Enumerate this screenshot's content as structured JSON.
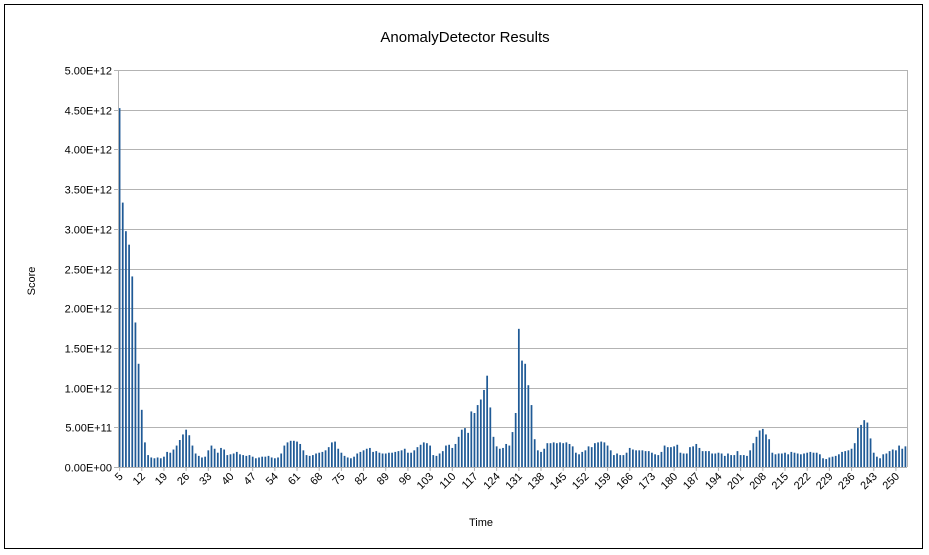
{
  "chart_data": {
    "type": "bar",
    "title": "AnomalyDetector Results",
    "xlabel": "Time",
    "ylabel": "Score",
    "ylim": [
      0,
      5000000000000
    ],
    "yticks": [
      "0.00E+00",
      "5.00E+11",
      "1.00E+12",
      "1.50E+12",
      "2.00E+12",
      "2.50E+12",
      "3.00E+12",
      "3.50E+12",
      "4.00E+12",
      "4.50E+12",
      "5.00E+12"
    ],
    "x_start": 5,
    "x_end": 256,
    "xtick_labels": [
      5,
      12,
      19,
      26,
      33,
      40,
      47,
      54,
      61,
      68,
      75,
      82,
      89,
      96,
      103,
      110,
      117,
      124,
      131,
      138,
      145,
      152,
      159,
      166,
      173,
      180,
      187,
      194,
      201,
      208,
      215,
      222,
      229,
      236,
      243,
      250
    ],
    "grid": true,
    "legend": "none",
    "bar_color": "#1f5a96",
    "series": [
      {
        "values": [
          4520000000000.0,
          3330000000000.0,
          2970000000000.0,
          2800000000000.0,
          2400000000000.0,
          1820000000000.0,
          1300000000000.0,
          720000000000.0,
          310000000000.0,
          150000000000.0,
          120000000000.0,
          110000000000.0,
          120000000000.0,
          110000000000.0,
          130000000000.0,
          190000000000.0,
          180000000000.0,
          220000000000.0,
          270000000000.0,
          340000000000.0,
          410000000000.0,
          470000000000.0,
          400000000000.0,
          270000000000.0,
          170000000000.0,
          140000000000.0,
          120000000000.0,
          130000000000.0,
          210000000000.0,
          270000000000.0,
          230000000000.0,
          180000000000.0,
          240000000000.0,
          220000000000.0,
          150000000000.0,
          160000000000.0,
          170000000000.0,
          190000000000.0,
          160000000000.0,
          150000000000.0,
          140000000000.0,
          150000000000.0,
          130000000000.0,
          110000000000.0,
          120000000000.0,
          130000000000.0,
          130000000000.0,
          140000000000.0,
          120000000000.0,
          110000000000.0,
          120000000000.0,
          170000000000.0,
          270000000000.0,
          310000000000.0,
          330000000000.0,
          330000000000.0,
          320000000000.0,
          290000000000.0,
          210000000000.0,
          150000000000.0,
          140000000000.0,
          150000000000.0,
          170000000000.0,
          180000000000.0,
          190000000000.0,
          210000000000.0,
          250000000000.0,
          310000000000.0,
          320000000000.0,
          230000000000.0,
          180000000000.0,
          140000000000.0,
          120000000000.0,
          110000000000.0,
          130000000000.0,
          170000000000.0,
          190000000000.0,
          210000000000.0,
          230000000000.0,
          240000000000.0,
          190000000000.0,
          200000000000.0,
          180000000000.0,
          170000000000.0,
          170000000000.0,
          180000000000.0,
          180000000000.0,
          190000000000.0,
          200000000000.0,
          210000000000.0,
          230000000000.0,
          180000000000.0,
          180000000000.0,
          210000000000.0,
          250000000000.0,
          280000000000.0,
          310000000000.0,
          300000000000.0,
          270000000000.0,
          150000000000.0,
          140000000000.0,
          170000000000.0,
          200000000000.0,
          270000000000.0,
          280000000000.0,
          240000000000.0,
          290000000000.0,
          380000000000.0,
          470000000000.0,
          490000000000.0,
          430000000000.0,
          700000000000.0,
          680000000000.0,
          780000000000.0,
          850000000000.0,
          970000000000.0,
          1150000000000.0,
          750000000000.0,
          380000000000.0,
          260000000000.0,
          230000000000.0,
          240000000000.0,
          290000000000.0,
          270000000000.0,
          440000000000.0,
          680000000000.0,
          1740000000000.0,
          1340000000000.0,
          1300000000000.0,
          1030000000000.0,
          780000000000.0,
          350000000000.0,
          210000000000.0,
          190000000000.0,
          230000000000.0,
          300000000000.0,
          300000000000.0,
          310000000000.0,
          300000000000.0,
          310000000000.0,
          300000000000.0,
          310000000000.0,
          290000000000.0,
          260000000000.0,
          180000000000.0,
          160000000000.0,
          190000000000.0,
          210000000000.0,
          260000000000.0,
          250000000000.0,
          300000000000.0,
          310000000000.0,
          320000000000.0,
          310000000000.0,
          270000000000.0,
          210000000000.0,
          150000000000.0,
          170000000000.0,
          150000000000.0,
          150000000000.0,
          180000000000.0,
          240000000000.0,
          220000000000.0,
          210000000000.0,
          210000000000.0,
          210000000000.0,
          200000000000.0,
          200000000000.0,
          180000000000.0,
          160000000000.0,
          150000000000.0,
          190000000000.0,
          270000000000.0,
          250000000000.0,
          250000000000.0,
          260000000000.0,
          280000000000.0,
          180000000000.0,
          170000000000.0,
          170000000000.0,
          250000000000.0,
          260000000000.0,
          290000000000.0,
          240000000000.0,
          200000000000.0,
          200000000000.0,
          200000000000.0,
          170000000000.0,
          170000000000.0,
          180000000000.0,
          170000000000.0,
          140000000000.0,
          170000000000.0,
          150000000000.0,
          150000000000.0,
          200000000000.0,
          150000000000.0,
          150000000000.0,
          140000000000.0,
          210000000000.0,
          300000000000.0,
          380000000000.0,
          460000000000.0,
          480000000000.0,
          410000000000.0,
          350000000000.0,
          180000000000.0,
          160000000000.0,
          170000000000.0,
          170000000000.0,
          180000000000.0,
          160000000000.0,
          190000000000.0,
          180000000000.0,
          170000000000.0,
          160000000000.0,
          170000000000.0,
          180000000000.0,
          190000000000.0,
          180000000000.0,
          180000000000.0,
          160000000000.0,
          110000000000.0,
          100000000000.0,
          120000000000.0,
          130000000000.0,
          140000000000.0,
          160000000000.0,
          190000000000.0,
          200000000000.0,
          210000000000.0,
          230000000000.0,
          300000000000.0,
          490000000000.0,
          530000000000.0,
          590000000000.0,
          560000000000.0,
          360000000000.0,
          180000000000.0,
          130000000000.0,
          110000000000.0,
          160000000000.0,
          170000000000.0,
          200000000000.0,
          220000000000.0,
          210000000000.0,
          270000000000.0,
          230000000000.0,
          260000000000.0
        ]
      }
    ]
  }
}
